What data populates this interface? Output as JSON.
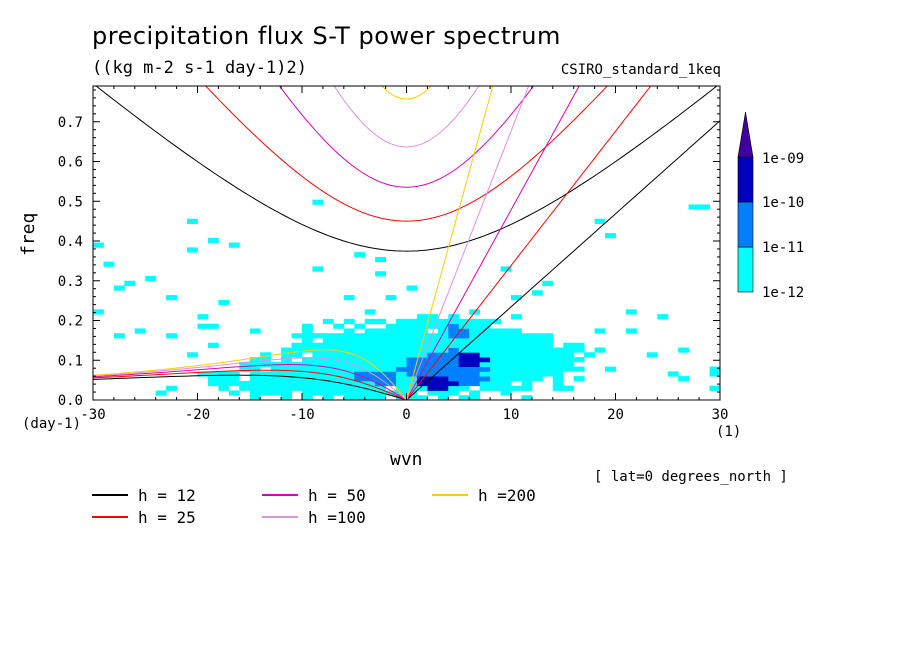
{
  "title": "precipitation flux S-T power spectrum",
  "units": "((kg m-2 s-1 day-1)2)",
  "model": "CSIRO_standard_1keq",
  "xlabel": "wvn",
  "ylabel": "freq",
  "x_unit_left": "(day-1)",
  "x_unit_right": "(1)",
  "lat_note": "[ lat=0 degrees_north ]",
  "colorbar": {
    "labels": [
      "1e-12",
      "1e-11",
      "1e-10",
      "1e-09"
    ],
    "colors": [
      "#00ffff",
      "#0080ff",
      "#0000c0",
      "#4000a0"
    ]
  },
  "legend": [
    {
      "label": "h = 12",
      "color": "#000000"
    },
    {
      "label": "h = 25",
      "color": "#ff0000"
    },
    {
      "label": "h = 50",
      "color": "#e000b0"
    },
    {
      "label": "h =100",
      "color": "#e090e0"
    },
    {
      "label": "h =200",
      "color": "#ffcc00"
    }
  ],
  "chart_data": {
    "type": "heatmap",
    "title": "precipitation flux S-T power spectrum",
    "subtitle": "((kg m-2 s-1 day-1)2)",
    "xlabel": "wvn",
    "ylabel": "freq",
    "xlim": [
      -30,
      30
    ],
    "ylim": [
      0,
      0.79
    ],
    "x_ticks": [
      -30,
      -20,
      -10,
      0,
      10,
      20,
      30
    ],
    "y_ticks": [
      0.0,
      0.1,
      0.2,
      0.3,
      0.4,
      0.5,
      0.6,
      0.7
    ],
    "x_tick_labels": [
      "-30",
      "-20",
      "-10",
      "0",
      "10",
      "20",
      "30"
    ],
    "y_tick_labels": [
      "0.0",
      "0.1",
      "0.2",
      "0.3",
      "0.4",
      "0.5",
      "0.6",
      "0.7"
    ],
    "color_levels": [
      1e-12,
      1e-11,
      1e-10,
      1e-09
    ],
    "dispersion_curves": {
      "equivalent_depths": [
        12,
        25,
        50,
        100,
        200
      ],
      "families": [
        "kelvin",
        "n=1 rossby",
        "n=1 inertio-gravity"
      ]
    },
    "power_blobs": [
      {
        "x": 0,
        "y": 0.1,
        "sx": 14,
        "sy": 0.11,
        "level": 1
      },
      {
        "x": 3,
        "y": 0.12,
        "sx": 9,
        "sy": 0.08,
        "level": 1
      },
      {
        "x": -8,
        "y": 0.05,
        "sx": 12,
        "sy": 0.05,
        "level": 1
      },
      {
        "x": 8,
        "y": 0.1,
        "sx": 10,
        "sy": 0.08,
        "level": 1
      },
      {
        "x": 4,
        "y": 0.08,
        "sx": 4.5,
        "sy": 0.05,
        "level": 2
      },
      {
        "x": 5,
        "y": 0.17,
        "sx": 1.5,
        "sy": 0.02,
        "level": 2
      },
      {
        "x": -3,
        "y": 0.06,
        "sx": 2.5,
        "sy": 0.02,
        "level": 2
      },
      {
        "x": 3,
        "y": 0.04,
        "sx": 2.0,
        "sy": 0.025,
        "level": 3
      },
      {
        "x": 6,
        "y": 0.1,
        "sx": 1.5,
        "sy": 0.02,
        "level": 3
      }
    ]
  }
}
